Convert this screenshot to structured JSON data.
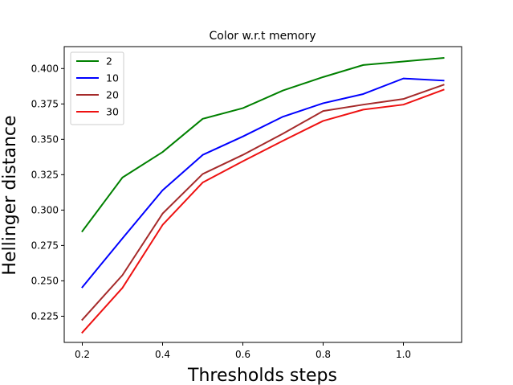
{
  "chart_data": {
    "type": "line",
    "title": "Color w.r.t memory",
    "xlabel": "Thresholds steps",
    "ylabel": "Hellinger distance",
    "xlim": [
      0.155,
      1.145
    ],
    "ylim": [
      0.2065,
      0.4155
    ],
    "x": [
      0.2,
      0.3,
      0.4,
      0.5,
      0.6,
      0.7,
      0.8,
      0.9,
      1.0,
      1.1
    ],
    "xticks": [
      0.2,
      0.4,
      0.6,
      0.8,
      1.0
    ],
    "xtick_labels": [
      "0.2",
      "0.4",
      "0.6",
      "0.8",
      "1.0"
    ],
    "yticks": [
      0.225,
      0.25,
      0.275,
      0.3,
      0.325,
      0.35,
      0.375,
      0.4
    ],
    "ytick_labels": [
      "0.225",
      "0.250",
      "0.275",
      "0.300",
      "0.325",
      "0.350",
      "0.375",
      "0.400"
    ],
    "grid": false,
    "legend_position": "top-left",
    "series": [
      {
        "name": "2",
        "color": "#008000",
        "values": [
          0.285,
          0.323,
          0.341,
          0.3645,
          0.372,
          0.3845,
          0.394,
          0.4025,
          0.405,
          0.4075
        ]
      },
      {
        "name": "10",
        "color": "#0000ff",
        "values": [
          0.2455,
          0.28,
          0.314,
          0.339,
          0.352,
          0.366,
          0.3755,
          0.382,
          0.393,
          0.3915
        ]
      },
      {
        "name": "20",
        "color": "#a52a2a",
        "values": [
          0.2225,
          0.254,
          0.2975,
          0.3255,
          0.339,
          0.354,
          0.37,
          0.3745,
          0.3785,
          0.3885
        ]
      },
      {
        "name": "30",
        "color": "#ee1111",
        "values": [
          0.2135,
          0.245,
          0.2895,
          0.3195,
          0.3345,
          0.349,
          0.363,
          0.371,
          0.3745,
          0.385
        ]
      }
    ]
  }
}
